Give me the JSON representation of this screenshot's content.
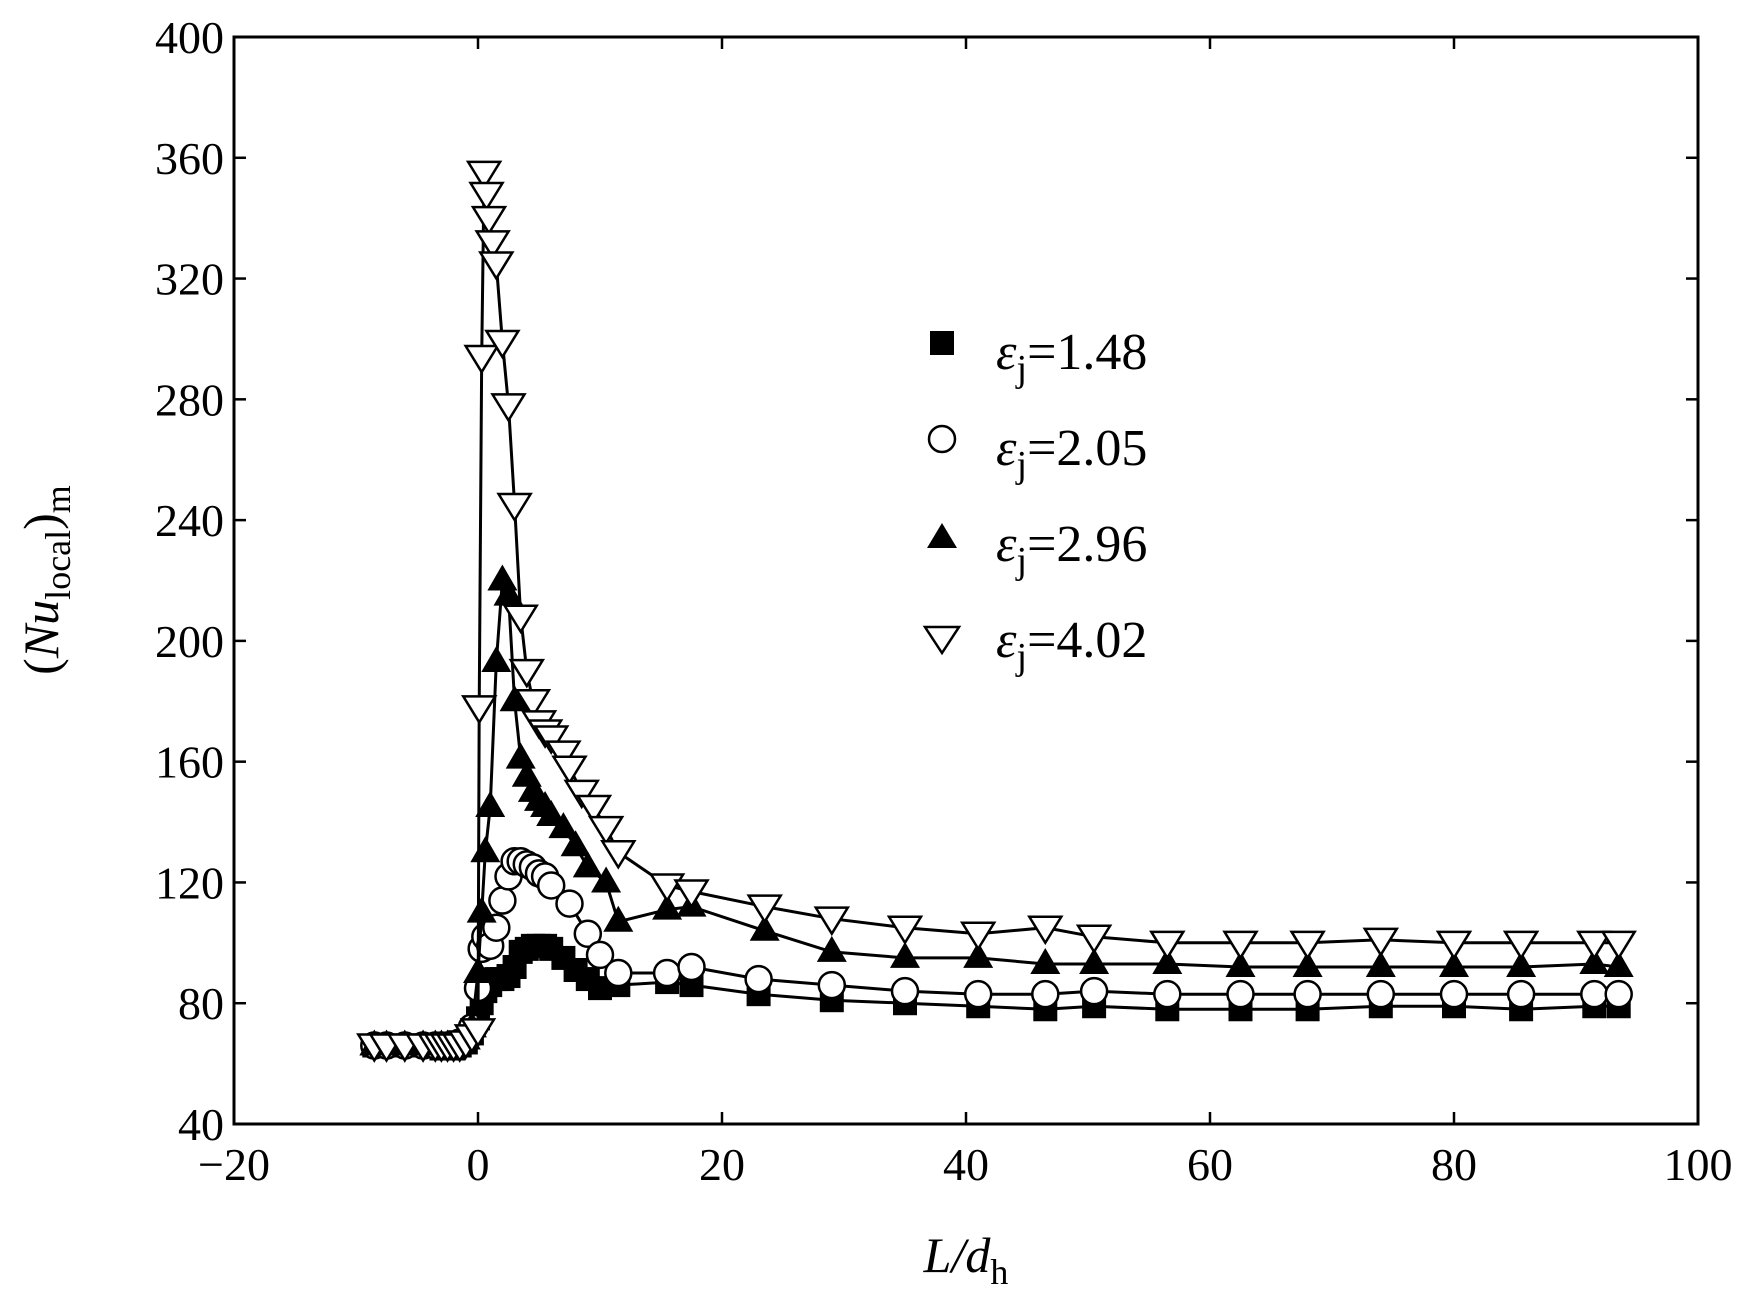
{
  "chart_data": {
    "type": "line",
    "title": "",
    "xlabel": {
      "main": "L/d",
      "sub": "h"
    },
    "ylabel": {
      "pre": "(",
      "main": "Nu",
      "sub": "local",
      "post": ")",
      "sub2": "m"
    },
    "xlim": [
      -20,
      100
    ],
    "ylim": [
      40,
      400
    ],
    "xticks": [
      -20,
      0,
      20,
      40,
      60,
      80,
      100
    ],
    "yticks": [
      40,
      80,
      120,
      160,
      200,
      240,
      280,
      320,
      360,
      400
    ],
    "xtick_labels": [
      "−20",
      "0",
      "20",
      "40",
      "60",
      "80",
      "100"
    ],
    "ytick_labels": [
      "40",
      "80",
      "120",
      "160",
      "200",
      "240",
      "280",
      "320",
      "360",
      "400"
    ],
    "grid": false,
    "legend_position": "upper-right-center",
    "series": [
      {
        "name": "εj=1.48",
        "legend": {
          "symbol": "ε",
          "sub": "j",
          "value": "=1.48"
        },
        "marker": "square-filled",
        "x": [
          -8.5,
          -7.5,
          -6,
          -4.5,
          -3.5,
          -3,
          -2.5,
          -2,
          -1.5,
          -1,
          -0.5,
          0,
          0.3,
          0.6,
          1,
          1.5,
          2,
          2.5,
          3,
          3.5,
          4,
          4.5,
          5,
          5.5,
          6,
          7,
          8,
          9,
          10,
          11.5,
          15.5,
          17.5,
          23,
          29,
          35,
          41,
          46.5,
          50.5,
          56.5,
          62.5,
          68,
          74,
          80,
          85.5,
          91.5,
          93.5
        ],
        "y": [
          66,
          66,
          66,
          66,
          66,
          65,
          65,
          65,
          66,
          67,
          70,
          75,
          80,
          84,
          86,
          88,
          88,
          89,
          92,
          97,
          98,
          99,
          99,
          99,
          98,
          95,
          91,
          88,
          85,
          86,
          87,
          86,
          83,
          81,
          80,
          79,
          78,
          79,
          78,
          78,
          78,
          79,
          79,
          78,
          79,
          79
        ]
      },
      {
        "name": "εj=2.05",
        "legend": {
          "symbol": "ε",
          "sub": "j",
          "value": "=2.05"
        },
        "marker": "circle-open",
        "x": [
          -8.5,
          -7.5,
          -6,
          -4.5,
          -3.5,
          -3,
          -2.5,
          -2,
          -1.5,
          -1,
          -0.5,
          0,
          0.3,
          0.6,
          1,
          1.5,
          2,
          2.5,
          3,
          3.5,
          4,
          4.5,
          5,
          5.5,
          6,
          7.5,
          9,
          10,
          11.5,
          15.5,
          17.5,
          23,
          29,
          35,
          41,
          46.5,
          50.5,
          56.5,
          62.5,
          68,
          74,
          80,
          85.5,
          91.5,
          93.5
        ],
        "y": [
          66,
          66,
          66,
          66,
          66,
          66,
          66,
          66,
          67,
          68,
          72,
          85,
          98,
          102,
          99,
          105,
          114,
          122,
          127,
          127,
          126,
          125,
          123,
          122,
          119,
          113,
          103,
          96,
          90,
          90,
          92,
          88,
          86,
          84,
          83,
          83,
          84,
          83,
          83,
          83,
          83,
          83,
          83,
          83,
          83
        ]
      },
      {
        "name": "εj=2.96",
        "legend": {
          "symbol": "ε",
          "sub": "j",
          "value": "=2.96"
        },
        "marker": "triangle-up-filled",
        "x": [
          -8.5,
          -7.5,
          -6,
          -4.5,
          -3.5,
          -3,
          -2.5,
          -2,
          -1.5,
          -1,
          -0.5,
          0,
          0.3,
          0.6,
          1,
          1.5,
          2,
          2.5,
          3,
          3.5,
          4,
          4.5,
          5,
          5.5,
          6,
          7,
          8,
          9,
          10.5,
          11.5,
          15.5,
          17.5,
          23.5,
          29,
          35,
          41,
          46.5,
          50.5,
          56.5,
          62.5,
          68,
          74,
          80,
          85.5,
          91.5,
          93.5
        ],
        "y": [
          66,
          66,
          66,
          66,
          66,
          66,
          66,
          66,
          67,
          68,
          72,
          90,
          110,
          130,
          145,
          193,
          220,
          215,
          180,
          161,
          155,
          150,
          147,
          145,
          142,
          138,
          132,
          125,
          120,
          107,
          111,
          112,
          104,
          97,
          95,
          95,
          93,
          93,
          93,
          92,
          92,
          92,
          92,
          92,
          93,
          92
        ]
      },
      {
        "name": "εj=4.02",
        "legend": {
          "symbol": "ε",
          "sub": "j",
          "value": "=4.02"
        },
        "marker": "triangle-down-open",
        "x": [
          -8.5,
          -7.5,
          -6,
          -4.5,
          -3.5,
          -3,
          -2.5,
          -2,
          -1.5,
          -1,
          -0.5,
          0,
          0.1,
          0.3,
          0.5,
          0.7,
          0.9,
          1.2,
          1.5,
          2,
          2.5,
          3,
          3.5,
          4,
          4.5,
          5,
          5.5,
          6,
          7,
          7.5,
          8.5,
          9.5,
          10.5,
          11.5,
          15.5,
          17.5,
          23.5,
          29,
          35,
          41,
          46.5,
          50.5,
          56.5,
          62.5,
          68,
          74,
          80,
          85.5,
          91.5,
          93.5
        ],
        "y": [
          66,
          66,
          66,
          66,
          66,
          66,
          66,
          66,
          66,
          67,
          69,
          71,
          178,
          294,
          355,
          348,
          340,
          332,
          325,
          299,
          278,
          245,
          208,
          190,
          180,
          173,
          170,
          168,
          163,
          158,
          150,
          145,
          138,
          130,
          119,
          117,
          112,
          108,
          105,
          103,
          105,
          102,
          100,
          100,
          100,
          101,
          100,
          100,
          100,
          100
        ]
      }
    ]
  }
}
